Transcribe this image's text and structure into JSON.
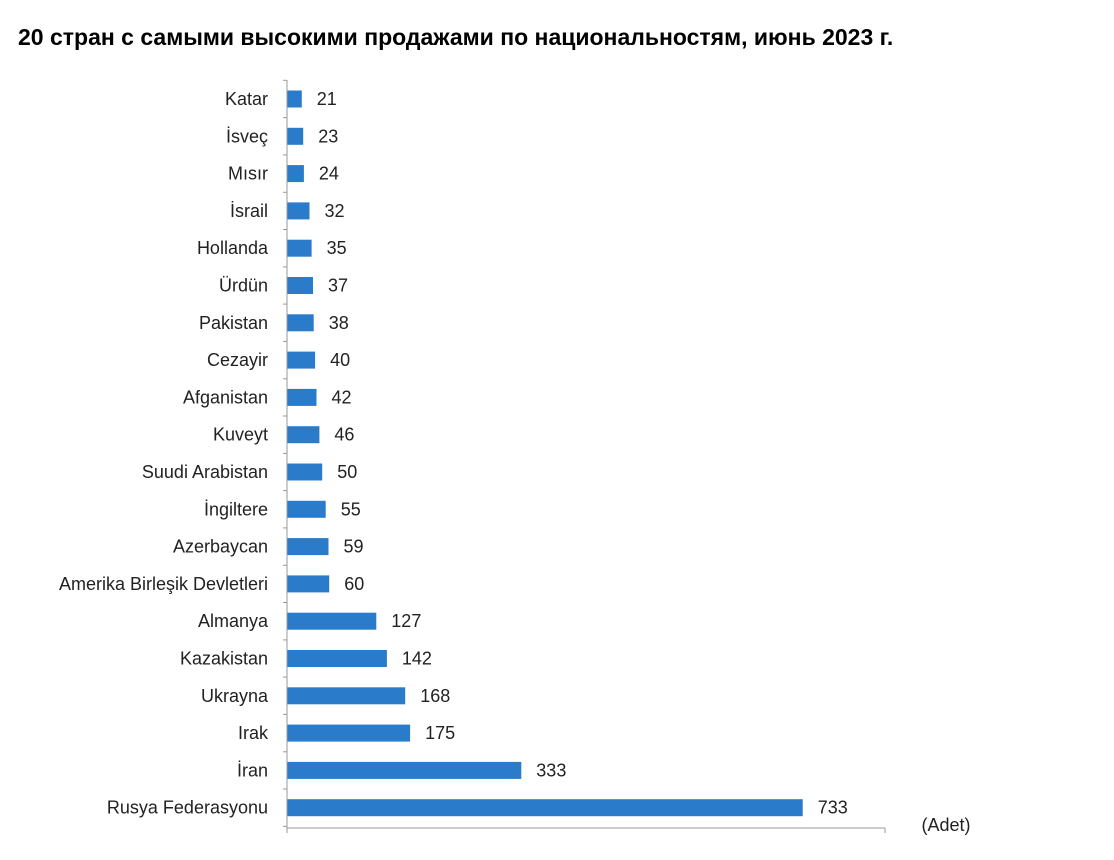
{
  "chart_data": {
    "type": "bar",
    "orientation": "horizontal",
    "title": "20 стран с самыми высокими продажами по национальностям, июнь 2023 г.",
    "unit_label": "(Adet)",
    "categories": [
      "Katar",
      "İsveç",
      "Mısır",
      "İsrail",
      "Hollanda",
      "Ürdün",
      "Pakistan",
      "Cezayir",
      "Afganistan",
      "Kuveyt",
      "Suudi Arabistan",
      "İngiltere",
      "Azerbaycan",
      "Amerika Birleşik Devletleri",
      "Almanya",
      "Kazakistan",
      "Ukrayna",
      "Irak",
      "İran",
      "Rusya Federasyonu"
    ],
    "values": [
      21,
      23,
      24,
      32,
      35,
      37,
      38,
      40,
      42,
      46,
      50,
      55,
      59,
      60,
      127,
      142,
      168,
      175,
      333,
      733
    ],
    "xlim": [
      0,
      850
    ],
    "bar_color": "#2a7ccb",
    "axis_color": "#9a9a9a",
    "grid": false,
    "legend": "none",
    "data_labels": true
  }
}
